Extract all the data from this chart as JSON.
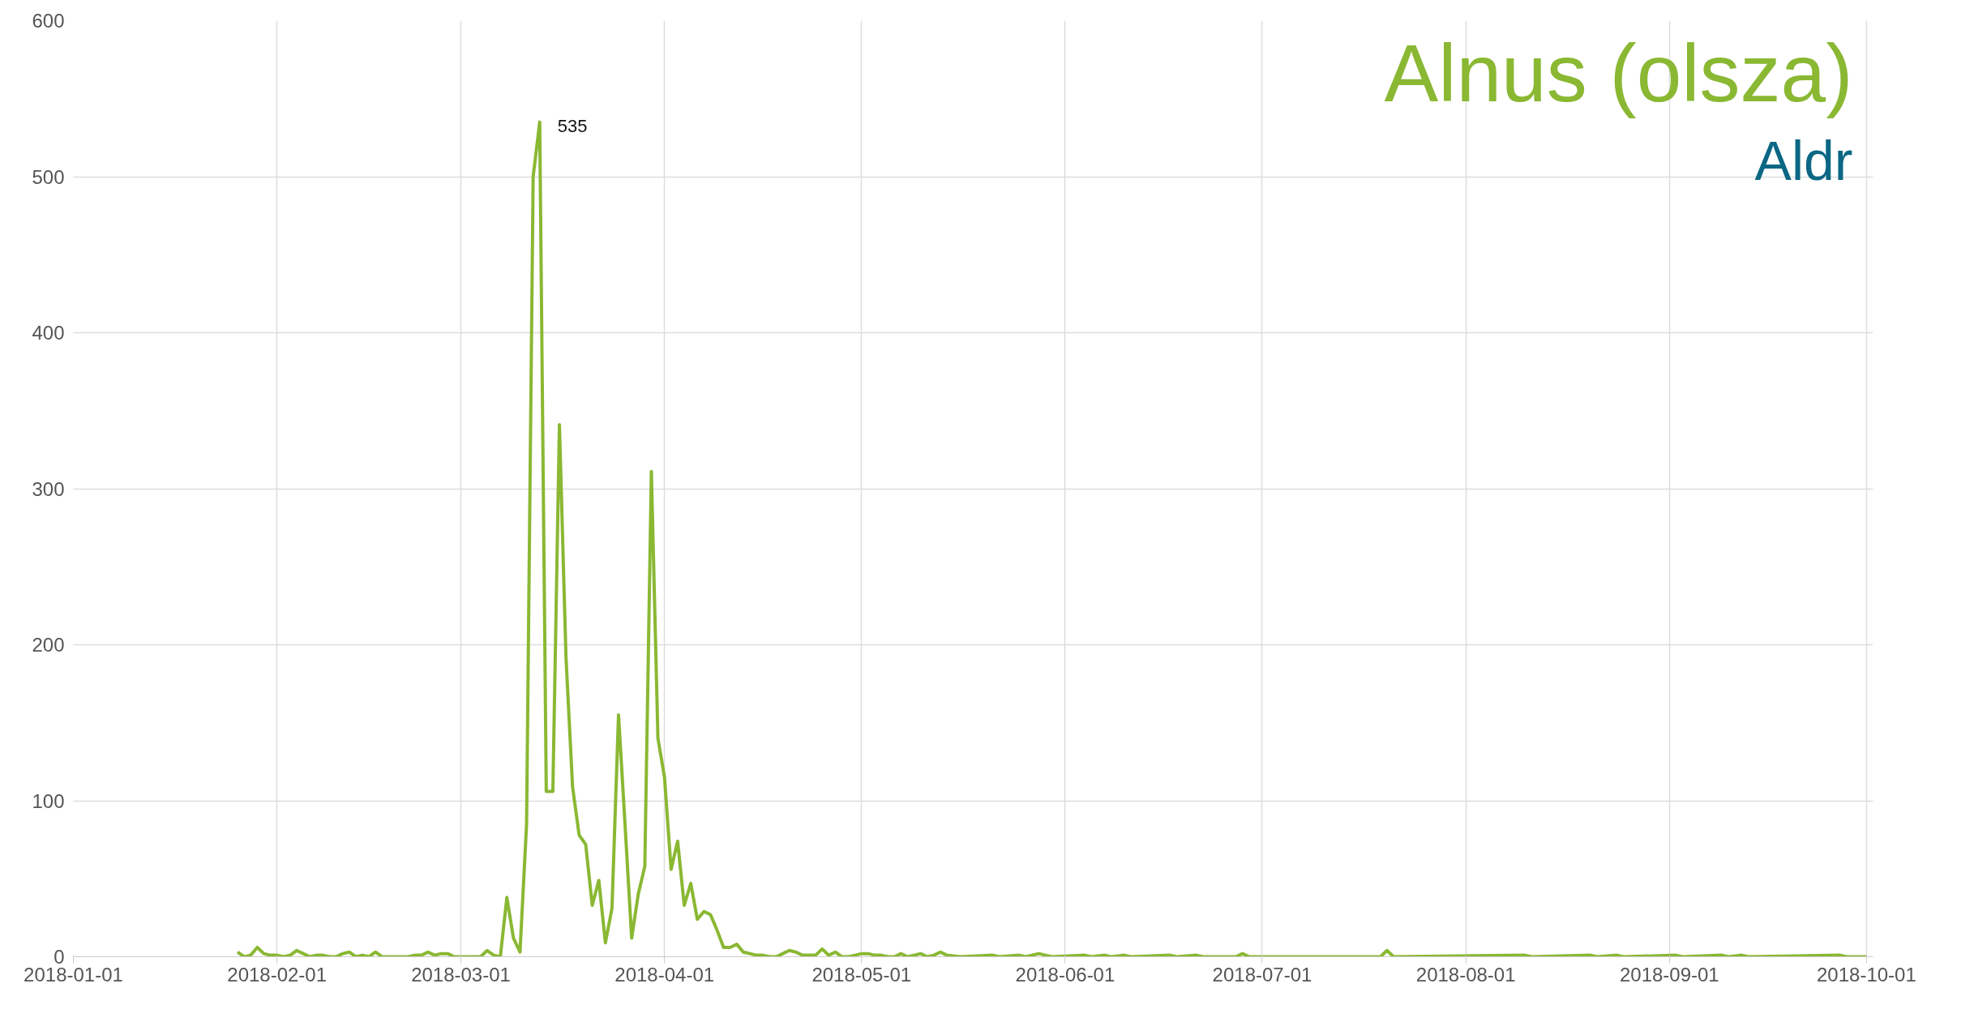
{
  "chart_data": {
    "type": "line",
    "title": "Alnus (olsza)",
    "subtitle": "Aldr",
    "xlim": [
      "2018-01-01",
      "2018-10-02"
    ],
    "xticks": [
      "2018-01-01",
      "2018-02-01",
      "2018-03-01",
      "2018-04-01",
      "2018-05-01",
      "2018-06-01",
      "2018-07-01",
      "2018-08-01",
      "2018-09-01",
      "2018-10-01"
    ],
    "ylim": [
      0,
      600
    ],
    "yticks": [
      0,
      100,
      200,
      300,
      400,
      500,
      600
    ],
    "grid": true,
    "annotations": [
      {
        "text": "535",
        "x": "2018-03-13",
        "y": 535
      }
    ],
    "series": [
      {
        "color": "#8ab833",
        "x": [
          "2018-01-26",
          "2018-01-27",
          "2018-01-28",
          "2018-01-29",
          "2018-01-30",
          "2018-01-31",
          "2018-02-01",
          "2018-02-02",
          "2018-02-03",
          "2018-02-04",
          "2018-02-05",
          "2018-02-06",
          "2018-02-07",
          "2018-02-08",
          "2018-02-09",
          "2018-02-10",
          "2018-02-11",
          "2018-02-12",
          "2018-02-13",
          "2018-02-14",
          "2018-02-15",
          "2018-02-16",
          "2018-02-17",
          "2018-02-18",
          "2018-02-19",
          "2018-02-20",
          "2018-02-21",
          "2018-02-22",
          "2018-02-23",
          "2018-02-24",
          "2018-02-25",
          "2018-02-26",
          "2018-02-27",
          "2018-02-28",
          "2018-03-01",
          "2018-03-02",
          "2018-03-03",
          "2018-03-04",
          "2018-03-05",
          "2018-03-06",
          "2018-03-07",
          "2018-03-08",
          "2018-03-09",
          "2018-03-10",
          "2018-03-11",
          "2018-03-12",
          "2018-03-13",
          "2018-03-14",
          "2018-03-15",
          "2018-03-16",
          "2018-03-17",
          "2018-03-18",
          "2018-03-19",
          "2018-03-20",
          "2018-03-21",
          "2018-03-22",
          "2018-03-23",
          "2018-03-24",
          "2018-03-25",
          "2018-03-26",
          "2018-03-27",
          "2018-03-28",
          "2018-03-29",
          "2018-03-30",
          "2018-03-31",
          "2018-04-01",
          "2018-04-02",
          "2018-04-03",
          "2018-04-04",
          "2018-04-05",
          "2018-04-06",
          "2018-04-07",
          "2018-04-08",
          "2018-04-09",
          "2018-04-10",
          "2018-04-11",
          "2018-04-12",
          "2018-04-13",
          "2018-04-14",
          "2018-04-15",
          "2018-04-16",
          "2018-04-17",
          "2018-04-18",
          "2018-04-19",
          "2018-04-20",
          "2018-04-21",
          "2018-04-22",
          "2018-04-23",
          "2018-04-24",
          "2018-04-25",
          "2018-04-26",
          "2018-04-27",
          "2018-04-28",
          "2018-04-29",
          "2018-04-30",
          "2018-05-01",
          "2018-05-02",
          "2018-05-03",
          "2018-05-04",
          "2018-05-05",
          "2018-05-06",
          "2018-05-07",
          "2018-05-08",
          "2018-05-09",
          "2018-05-10",
          "2018-05-11",
          "2018-05-12",
          "2018-05-13",
          "2018-05-14",
          "2018-05-16",
          "2018-05-21",
          "2018-05-22",
          "2018-05-25",
          "2018-05-26",
          "2018-05-28",
          "2018-05-29",
          "2018-05-30",
          "2018-06-04",
          "2018-06-05",
          "2018-06-07",
          "2018-06-08",
          "2018-06-10",
          "2018-06-11",
          "2018-06-17",
          "2018-06-18",
          "2018-06-21",
          "2018-06-22",
          "2018-06-27",
          "2018-06-28",
          "2018-06-29",
          "2018-07-19",
          "2018-07-20",
          "2018-07-21",
          "2018-08-10",
          "2018-08-11",
          "2018-08-20",
          "2018-08-21",
          "2018-08-24",
          "2018-08-25",
          "2018-09-02",
          "2018-09-03",
          "2018-09-09",
          "2018-09-10",
          "2018-09-12",
          "2018-09-13",
          "2018-09-27",
          "2018-09-28",
          "2018-10-01"
        ],
        "values": [
          3,
          0,
          1,
          6,
          2,
          1,
          1,
          0,
          1,
          4,
          2,
          0,
          1,
          1,
          0,
          0,
          2,
          3,
          0,
          1,
          0,
          3,
          0,
          0,
          0,
          0,
          0,
          1,
          1,
          3,
          1,
          2,
          2,
          0,
          0,
          0,
          0,
          0,
          4,
          1,
          0,
          38,
          12,
          3,
          85,
          500,
          535,
          106,
          106,
          341,
          192,
          109,
          78,
          72,
          33,
          49,
          9,
          31,
          155,
          84,
          12,
          40,
          58,
          311,
          140,
          115,
          56,
          74,
          33,
          47,
          24,
          29,
          27,
          17,
          6,
          6,
          8,
          3,
          2,
          1,
          1,
          0,
          0,
          2,
          4,
          3,
          1,
          1,
          1,
          5,
          1,
          3,
          0,
          0,
          1,
          2,
          2,
          1,
          1,
          0,
          0,
          2,
          0,
          1,
          2,
          0,
          1,
          3,
          1,
          0,
          1,
          0,
          1,
          0,
          2,
          1,
          0,
          1,
          0,
          1,
          0,
          1,
          0,
          1,
          0,
          1,
          0,
          0,
          2,
          0,
          0,
          4,
          0,
          1,
          0,
          1,
          0,
          1,
          0,
          1,
          0,
          1,
          0,
          1,
          0,
          1,
          0,
          0
        ]
      }
    ]
  }
}
